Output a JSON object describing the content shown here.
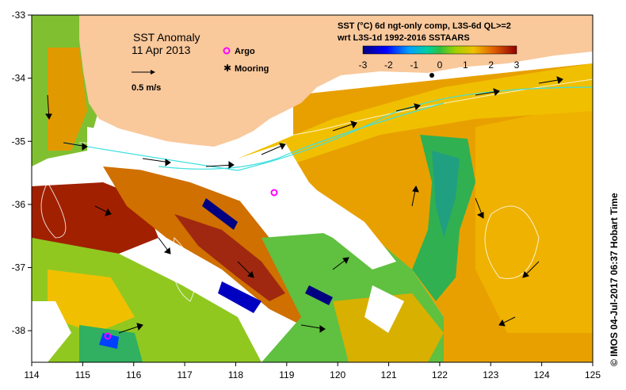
{
  "map": {
    "title": "SST Anomaly",
    "date": "11 Apr 2013",
    "velocity_scale_label": "0.5 m/s",
    "legend": [
      {
        "label": "Argo",
        "color": "#ff00ff",
        "icon": "argo-marker-icon"
      },
      {
        "label": "Mooring",
        "color": "#000000",
        "icon": "mooring-marker-icon"
      }
    ],
    "product_line1": "SST (°C) 6d ngt-only comp, L3S-6d QL>=2",
    "product_line2": "wrt L3S-1d 1992-2016 SSTAARS",
    "credit": "©  IMOS 04-Jul-2017 06:37 Hobart Time",
    "colors": {
      "land": "#f9c89b",
      "cold": "#000080",
      "neutral": "#44cc44",
      "warm": "#e8a000",
      "hot": "#8b0000"
    }
  },
  "chart_data": {
    "type": "heatmap",
    "xlim": [
      114,
      125
    ],
    "ylim": [
      -38.5,
      -33
    ],
    "x_ticks": [
      "114",
      "115",
      "116",
      "117",
      "118",
      "119",
      "120",
      "121",
      "122",
      "123",
      "124",
      "125"
    ],
    "y_ticks": [
      "-33",
      "-34",
      "-35",
      "-36",
      "-37",
      "-38"
    ],
    "colorbar": {
      "ticks": [
        "-3",
        "-2",
        "-1",
        "0",
        "1",
        "2",
        "3"
      ],
      "range": [
        -3,
        3
      ]
    },
    "argo_positions": [
      [
        118.8,
        -35.8
      ],
      [
        115.6,
        -38.05
      ]
    ],
    "mooring_positions": [
      [
        121.9,
        -33.95
      ]
    ]
  }
}
